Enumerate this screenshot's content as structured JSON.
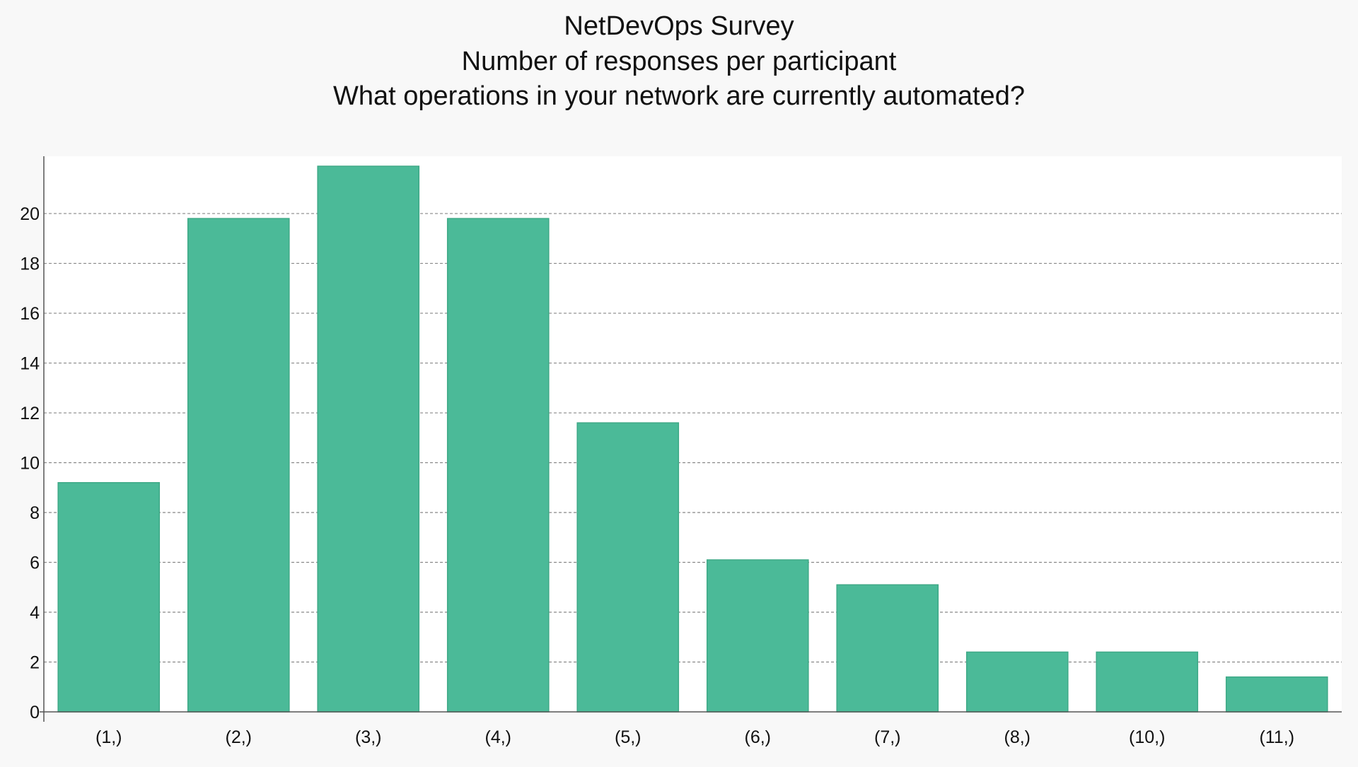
{
  "chart_data": {
    "type": "bar",
    "title": "NetDevOps Survey",
    "subtitle": "Number of responses per participant",
    "question": "What operations in your network are currently automated?",
    "xlabel": "",
    "ylabel": "",
    "categories": [
      "(1,)",
      "(2,)",
      "(3,)",
      "(4,)",
      "(5,)",
      "(6,)",
      "(7,)",
      "(8,)",
      "(10,)",
      "(11,)"
    ],
    "values": [
      9.2,
      19.8,
      21.9,
      19.8,
      11.6,
      6.1,
      5.1,
      2.4,
      2.4,
      1.4
    ],
    "ylim": [
      0,
      22.3
    ],
    "yticks": [
      0,
      2,
      4,
      6,
      8,
      10,
      12,
      14,
      16,
      18,
      20
    ],
    "grid": true,
    "legend": "none",
    "colors": {
      "bar": "#4bba98",
      "bar_edge": "#3fa987",
      "page_background": "#f8f8f8",
      "plot_background": "#ffffff",
      "grid": "#888888",
      "axis": "#555555"
    }
  }
}
